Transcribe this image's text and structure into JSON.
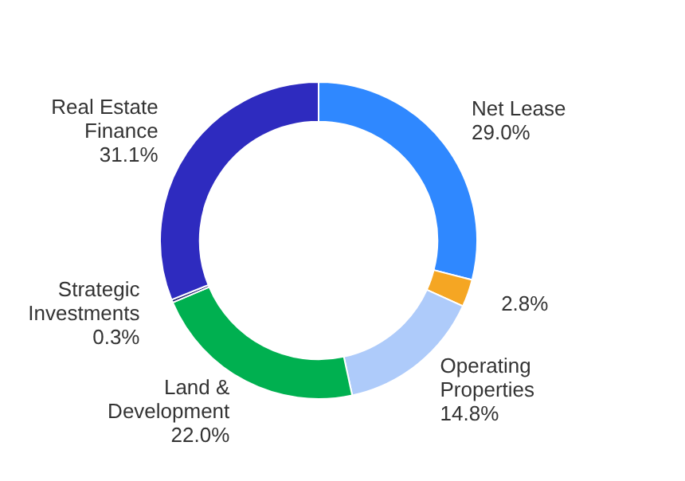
{
  "chart_data": {
    "type": "donut",
    "categories": [
      "Net Lease",
      null,
      "Operating Properties",
      "Land & Development",
      "Strategic Investments",
      "Real Estate Finance"
    ],
    "values": [
      29.0,
      2.8,
      14.8,
      22.0,
      0.3,
      31.1
    ],
    "value_labels": [
      "29.0%",
      "2.8%",
      "14.8%",
      "22.0%",
      "0.3%",
      "31.1%"
    ],
    "colors": [
      "#2f88ff",
      "#f5a623",
      "#aecbfa",
      "#00b050",
      "#1b1b6e",
      "#2e2bbf"
    ],
    "legend": false
  }
}
